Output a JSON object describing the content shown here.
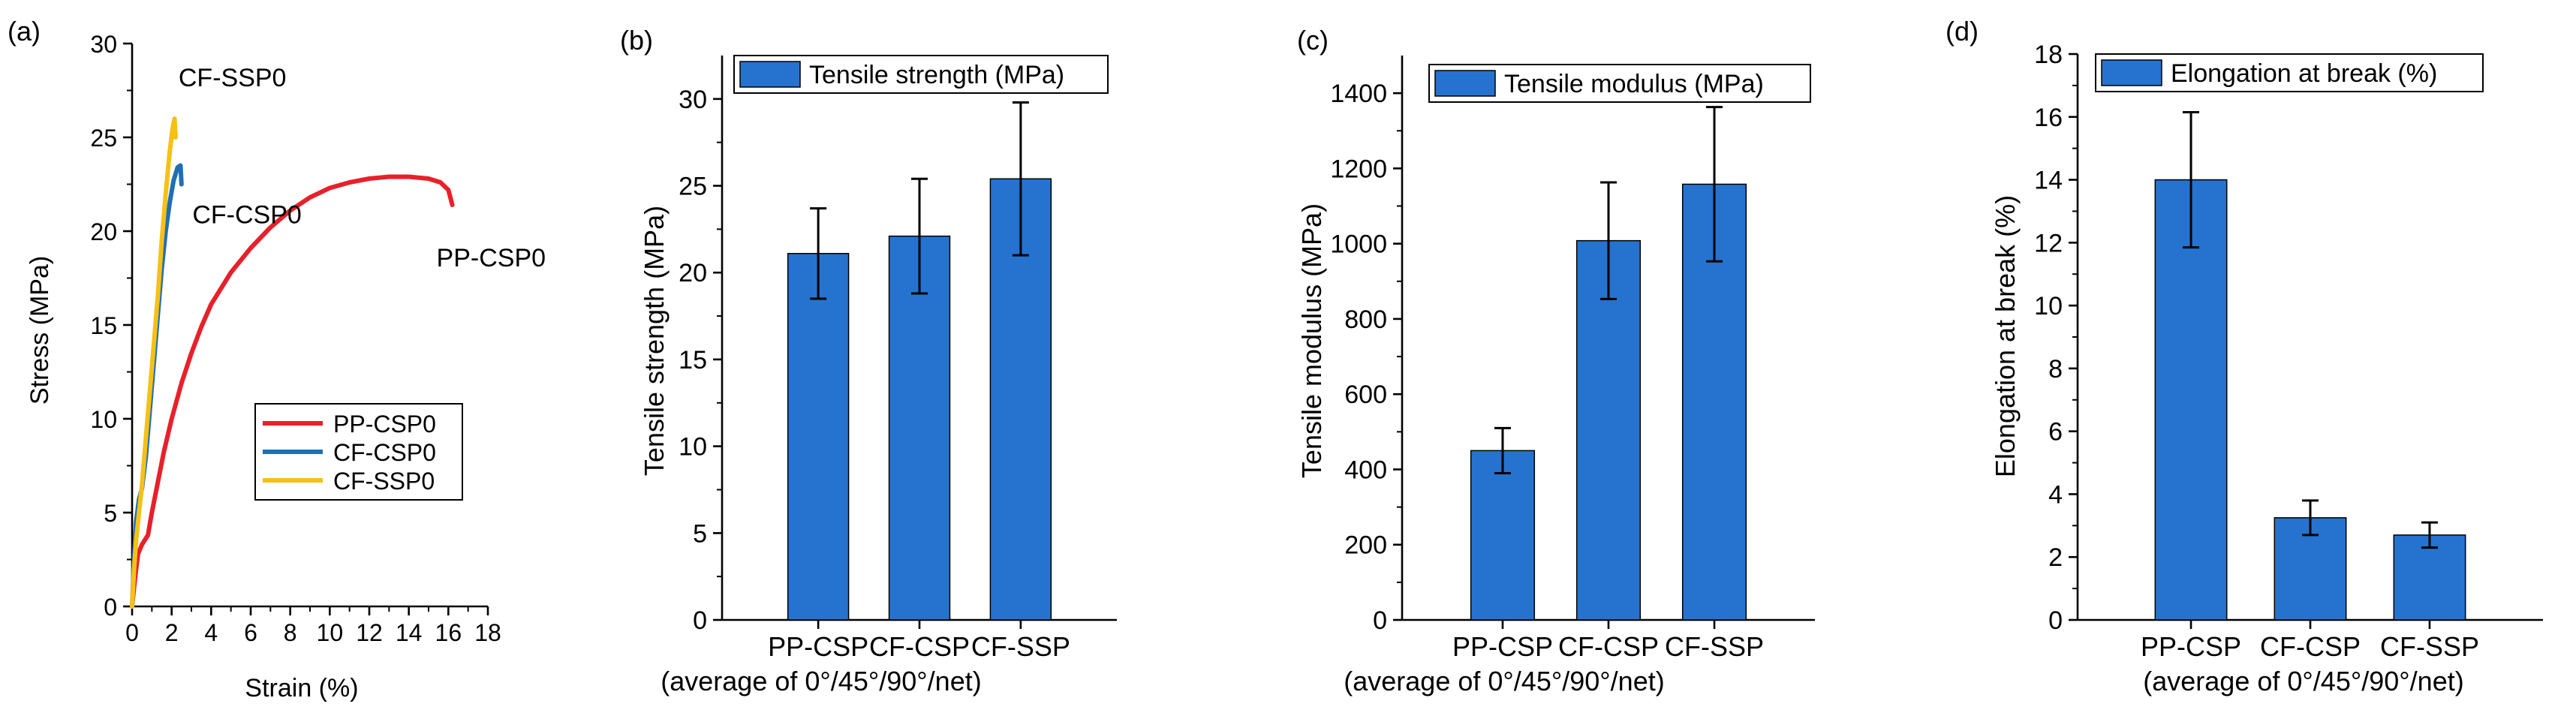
{
  "figure": {
    "panel_labels": [
      "(a)",
      "(b)",
      "(c)",
      "(d)"
    ]
  },
  "chart_data": [
    {
      "type": "line",
      "panel": "(a)",
      "xlabel": "Strain (%)",
      "ylabel": "Stress (MPa)",
      "xlim": [
        0,
        18
      ],
      "ylim": [
        0,
        30
      ],
      "xticks": [
        0,
        2,
        4,
        6,
        8,
        10,
        12,
        14,
        16,
        18
      ],
      "yticks": [
        0,
        5,
        10,
        15,
        20,
        25,
        30
      ],
      "legend_position": "lower-right",
      "series": [
        {
          "name": "PP-CSP0",
          "color": "#e8202a",
          "label": "PP-CSP0",
          "points": [
            [
              0,
              0
            ],
            [
              0.15,
              1.5
            ],
            [
              0.3,
              2.8
            ],
            [
              0.5,
              3.3
            ],
            [
              0.8,
              3.8
            ],
            [
              1,
              5
            ],
            [
              1.3,
              6.6
            ],
            [
              1.6,
              8.2
            ],
            [
              2,
              10
            ],
            [
              2.5,
              11.9
            ],
            [
              3,
              13.5
            ],
            [
              3.5,
              14.9
            ],
            [
              4,
              16.1
            ],
            [
              5,
              17.8
            ],
            [
              6,
              19.1
            ],
            [
              7,
              20.2
            ],
            [
              8,
              21.1
            ],
            [
              9,
              21.8
            ],
            [
              10,
              22.3
            ],
            [
              11,
              22.6
            ],
            [
              12,
              22.8
            ],
            [
              13,
              22.9
            ],
            [
              14,
              22.9
            ],
            [
              15,
              22.8
            ],
            [
              15.6,
              22.6
            ],
            [
              16,
              22.2
            ],
            [
              16.2,
              21.4
            ]
          ]
        },
        {
          "name": "CF-CSP0",
          "color": "#1f6fb4",
          "label": "CF-CSP0",
          "points": [
            [
              0,
              0
            ],
            [
              0.1,
              2.5
            ],
            [
              0.2,
              4.5
            ],
            [
              0.35,
              5.7
            ],
            [
              0.5,
              6.3
            ],
            [
              0.7,
              8
            ],
            [
              0.9,
              10.5
            ],
            [
              1.1,
              13
            ],
            [
              1.3,
              15.5
            ],
            [
              1.5,
              18
            ],
            [
              1.7,
              20
            ],
            [
              1.9,
              21.5
            ],
            [
              2.1,
              22.7
            ],
            [
              2.3,
              23.4
            ],
            [
              2.45,
              23.5
            ],
            [
              2.5,
              22.5
            ]
          ]
        },
        {
          "name": "CF-SSP0",
          "color": "#f6c116",
          "label": "CF-SSP0",
          "points": [
            [
              0,
              0
            ],
            [
              0.1,
              2
            ],
            [
              0.2,
              3.5
            ],
            [
              0.35,
              5
            ],
            [
              0.5,
              6.5
            ],
            [
              0.7,
              9
            ],
            [
              0.9,
              11.5
            ],
            [
              1.1,
              14
            ],
            [
              1.3,
              16.5
            ],
            [
              1.5,
              19.5
            ],
            [
              1.7,
              22
            ],
            [
              1.9,
              24.2
            ],
            [
              2.05,
              25.5
            ],
            [
              2.15,
              26
            ],
            [
              2.2,
              25
            ]
          ]
        }
      ]
    },
    {
      "type": "bar",
      "panel": "(b)",
      "categories": [
        "PP-CSP",
        "CF-CSP",
        "CF-SSP"
      ],
      "xlabel": "(average of 0°/45°/90°/net)",
      "ylabel": "Tensile strength (MPa)",
      "legend": "Tensile strength (MPa)",
      "values": [
        21.1,
        22.1,
        25.4
      ],
      "errors": [
        2.6,
        3.3,
        4.4
      ],
      "ylim": [
        0,
        32.5
      ],
      "yticks": [
        0,
        5,
        10,
        15,
        20,
        25,
        30
      ],
      "color": "#2673cf"
    },
    {
      "type": "bar",
      "panel": "(c)",
      "categories": [
        "PP-CSP",
        "CF-CSP",
        "CF-SSP"
      ],
      "xlabel": "(average of 0°/45°/90°/net)",
      "ylabel": "Tensile modulus (MPa)",
      "legend": "Tensile modulus (MPa)",
      "values": [
        450,
        1008,
        1158
      ],
      "errors": [
        60,
        155,
        205
      ],
      "ylim": [
        0,
        1500
      ],
      "yticks": [
        0,
        200,
        400,
        600,
        800,
        1000,
        1200,
        1400
      ],
      "color": "#2673cf"
    },
    {
      "type": "bar",
      "panel": "(d)",
      "categories": [
        "PP-CSP",
        "CF-CSP",
        "CF-SSP"
      ],
      "xlabel": "(average of 0°/45°/90°/net)",
      "ylabel": "Elongation at break (%)",
      "legend": "Elongation at break (%)",
      "values": [
        14.0,
        3.25,
        2.7
      ],
      "errors": [
        2.15,
        0.55,
        0.4
      ],
      "ylim": [
        0,
        18
      ],
      "yticks": [
        0,
        2,
        4,
        6,
        8,
        10,
        12,
        14,
        16,
        18
      ],
      "color": "#2673cf"
    }
  ]
}
